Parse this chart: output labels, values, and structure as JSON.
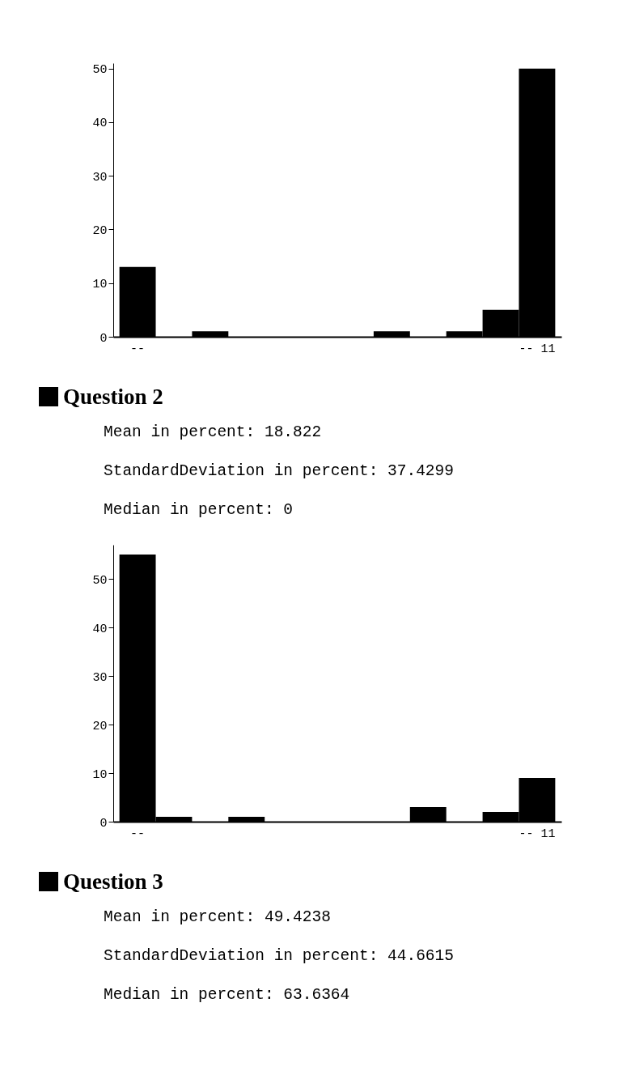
{
  "chart_data": [
    {
      "type": "bar",
      "categories": [
        "--",
        null,
        null,
        null,
        null,
        null,
        null,
        null,
        null,
        null,
        null,
        "-- 11"
      ],
      "values": [
        13,
        0,
        1,
        0,
        0,
        0,
        0,
        1,
        0,
        1,
        5,
        50
      ],
      "color": "#000000",
      "ylim": [
        0,
        51
      ],
      "yticks": [
        0,
        10,
        20,
        30,
        40,
        50
      ]
    },
    {
      "type": "bar",
      "title": "Question 2",
      "annotations": [
        "Mean in percent: 18.822",
        "StandardDeviation in percent: 37.4299",
        "Median in percent: 0"
      ],
      "categories": [
        "--",
        null,
        null,
        null,
        null,
        null,
        null,
        null,
        null,
        null,
        null,
        "-- 11"
      ],
      "values": [
        55,
        1,
        0,
        1,
        0,
        0,
        0,
        0,
        3,
        0,
        2,
        9
      ],
      "color": "#000000",
      "ylim": [
        0,
        57
      ],
      "yticks": [
        0,
        10,
        20,
        30,
        40,
        50
      ]
    },
    {
      "type": "other",
      "title": "Question 3",
      "annotations": [
        "Mean in percent: 49.4238",
        "StandardDeviation in percent: 44.6615",
        "Median in percent: 63.6364"
      ]
    }
  ]
}
